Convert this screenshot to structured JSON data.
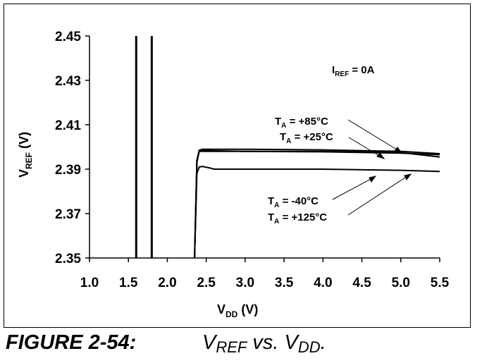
{
  "figure": {
    "label": "FIGURE 2-54:",
    "title_main1": "V",
    "title_sub1": "REF",
    "title_mid": " vs. V",
    "title_sub2": "DD",
    "title_end": "."
  },
  "chart_data": {
    "type": "line",
    "xlabel_main": "V",
    "xlabel_sub": "DD",
    "xlabel_unit": " (V)",
    "ylabel_main": "V",
    "ylabel_sub": "REF",
    "ylabel_unit": " (V)",
    "xlim": [
      1.0,
      5.5
    ],
    "ylim": [
      2.35,
      2.45
    ],
    "x_ticks": [
      1.0,
      1.5,
      2.0,
      2.5,
      3.0,
      3.5,
      4.0,
      4.5,
      5.0,
      5.5
    ],
    "x_tick_labels": [
      "1.0",
      "1.5",
      "2.0",
      "2.5",
      "3.0",
      "3.5",
      "4.0",
      "4.5",
      "5.0",
      "5.5"
    ],
    "y_ticks": [
      2.35,
      2.37,
      2.39,
      2.41,
      2.43,
      2.45
    ],
    "y_tick_labels": [
      "2.35",
      "2.37",
      "2.39",
      "2.41",
      "2.43",
      "2.45"
    ],
    "grid": false,
    "vertical_lines": [
      1.6,
      1.8
    ],
    "condition": {
      "main": "I",
      "sub": "REF",
      "value": " = 0A"
    },
    "series": [
      {
        "name": "+85°C",
        "x": [
          2.35,
          2.38,
          2.41,
          2.45,
          2.6,
          3.0,
          4.0,
          5.0,
          5.5
        ],
        "y": [
          2.35,
          2.394,
          2.3985,
          2.399,
          2.399,
          2.399,
          2.3987,
          2.398,
          2.397
        ]
      },
      {
        "name": "+25°C",
        "x": [
          2.35,
          2.38,
          2.41,
          2.45,
          2.6,
          3.0,
          4.0,
          5.0,
          5.5
        ],
        "y": [
          2.35,
          2.394,
          2.398,
          2.3985,
          2.3983,
          2.398,
          2.3978,
          2.3972,
          2.3965
        ]
      },
      {
        "name": "-40°C",
        "x": [
          2.35,
          2.38,
          2.41,
          2.45,
          2.55,
          2.6,
          3.0,
          4.0,
          5.0,
          5.5
        ],
        "y": [
          2.35,
          2.388,
          2.391,
          2.3912,
          2.3905,
          2.39,
          2.39,
          2.39,
          2.3895,
          2.389
        ]
      },
      {
        "name": "+125°C",
        "x": [
          2.35,
          2.38,
          2.41,
          2.45,
          2.6,
          3.0,
          4.0,
          5.0,
          5.5
        ],
        "y": [
          2.35,
          2.393,
          2.398,
          2.398,
          2.398,
          2.398,
          2.398,
          2.3975,
          2.3955
        ]
      }
    ],
    "annotations": [
      {
        "main": "T",
        "sub": "A",
        "value": " = +85°C"
      },
      {
        "main": "T",
        "sub": "A",
        "value": " = +25°C"
      },
      {
        "main": "T",
        "sub": "A",
        "value": " = -40°C"
      },
      {
        "main": "T",
        "sub": "A",
        "value": " = +125°C"
      }
    ]
  }
}
